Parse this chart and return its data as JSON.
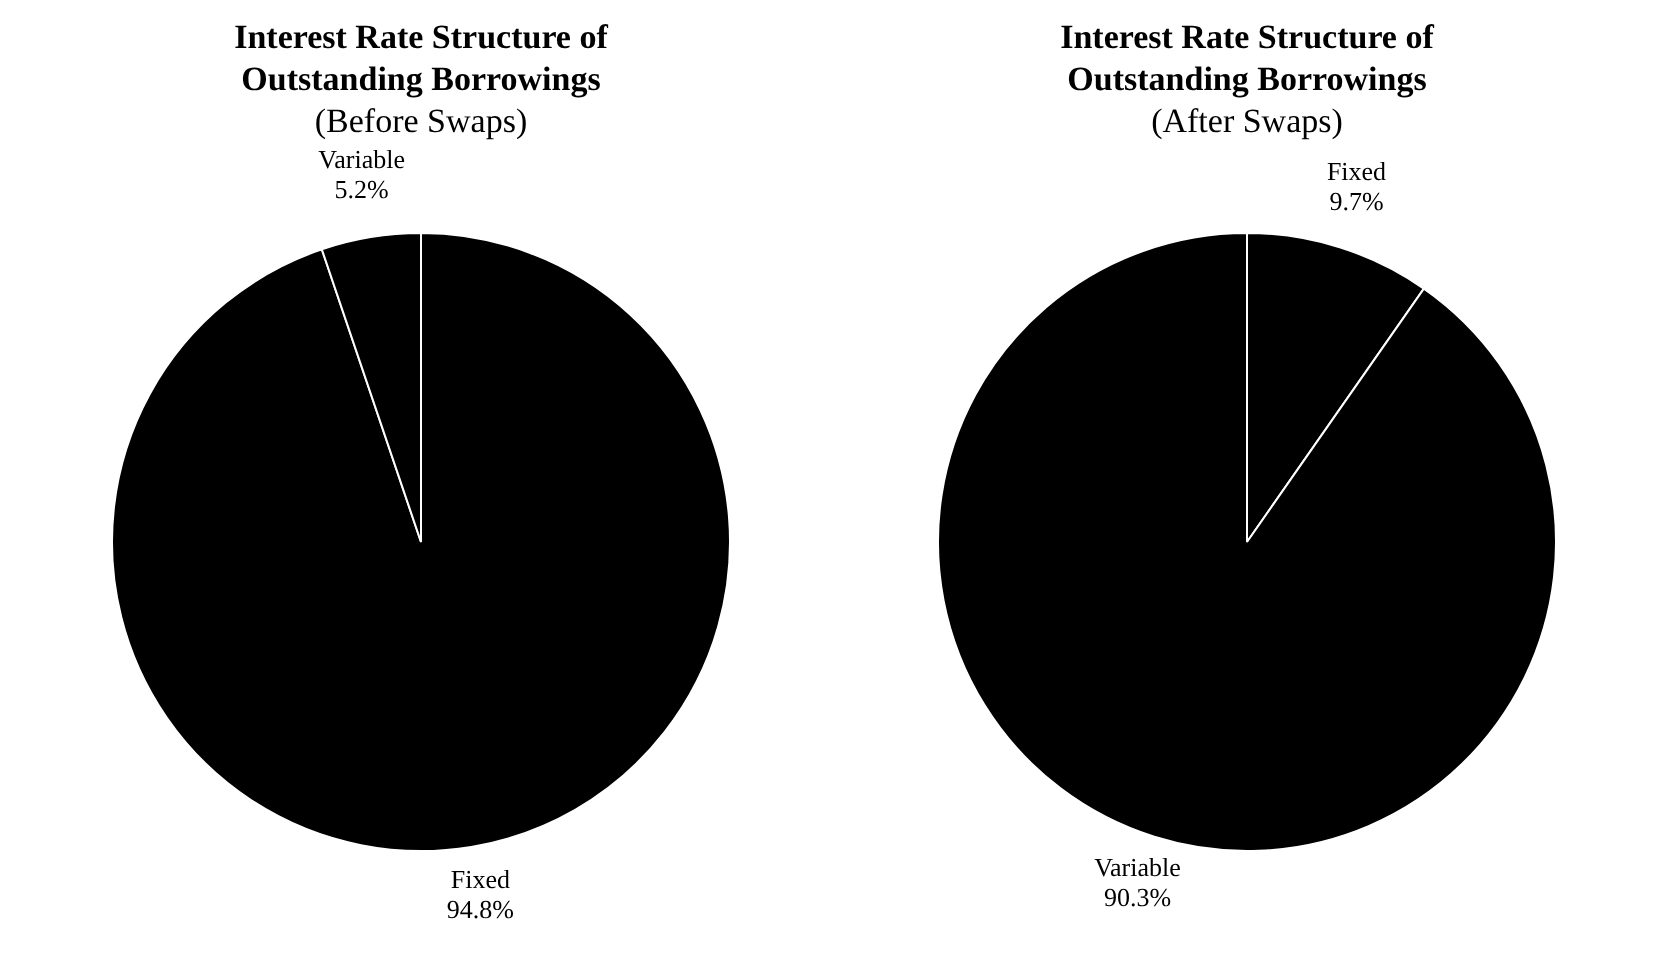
{
  "chart_data": [
    {
      "type": "pie",
      "title": "Interest Rate Structure of Outstanding Borrowings",
      "subtitle": "(Before Swaps)",
      "categories": [
        "Fixed",
        "Variable"
      ],
      "values": [
        94.8,
        5.2
      ],
      "value_labels": [
        "94.8%",
        "5.2%"
      ],
      "colors": [
        "#000000",
        "#000000"
      ],
      "legend": false
    },
    {
      "type": "pie",
      "title": "Interest Rate Structure of Outstanding Borrowings",
      "subtitle": "(After Swaps)",
      "categories": [
        "Fixed",
        "Variable"
      ],
      "values": [
        9.7,
        90.3
      ],
      "value_labels": [
        "9.7%",
        "90.3%"
      ],
      "colors": [
        "#000000",
        "#000000"
      ],
      "legend": false
    }
  ]
}
